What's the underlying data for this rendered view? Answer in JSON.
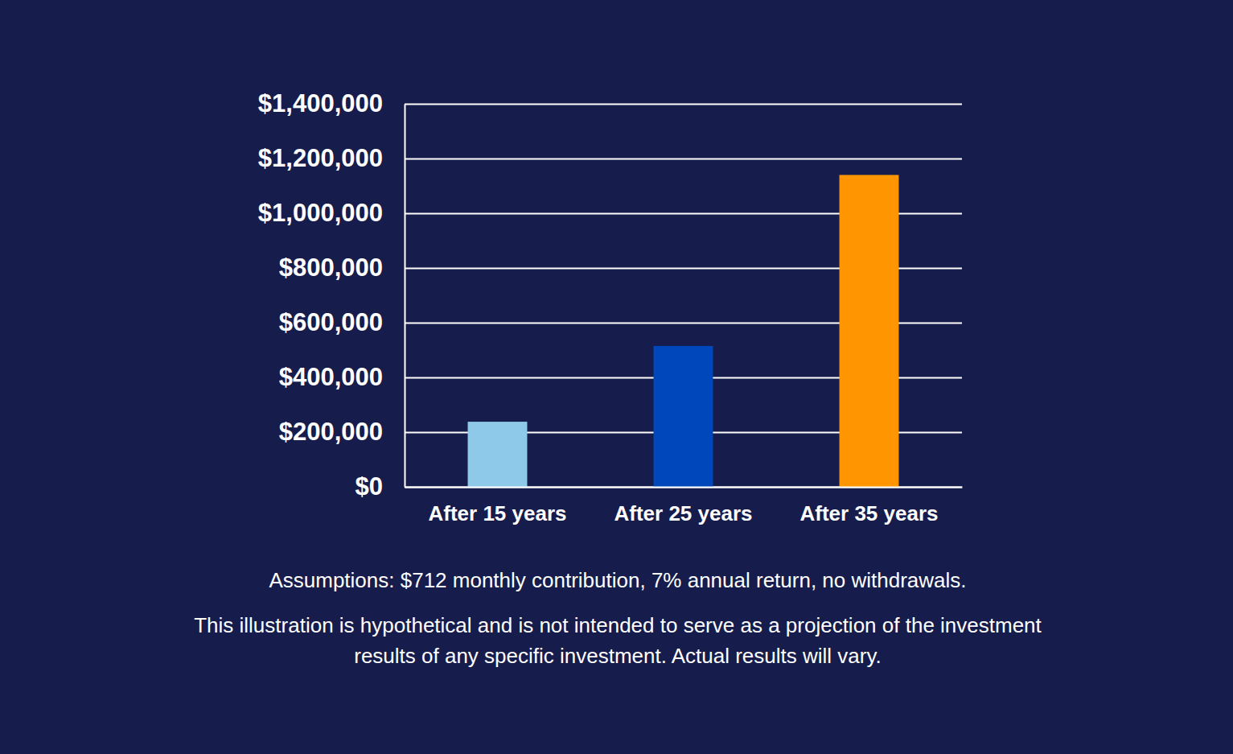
{
  "chart_data": {
    "type": "bar",
    "categories": [
      "After 15 years",
      "After 25 years",
      "After 35 years"
    ],
    "values": [
      238000,
      515000,
      1140000
    ],
    "colors": [
      "#8fc9ea",
      "#0047bb",
      "#ff9500"
    ],
    "ylim": [
      0,
      1400000
    ],
    "yticks": [
      {
        "value": 0,
        "label": "$0"
      },
      {
        "value": 200000,
        "label": "$200,000"
      },
      {
        "value": 400000,
        "label": "$400,000"
      },
      {
        "value": 600000,
        "label": "$600,000"
      },
      {
        "value": 800000,
        "label": "$800,000"
      },
      {
        "value": 1000000,
        "label": "$1,000,000"
      },
      {
        "value": 1200000,
        "label": "$1,200,000"
      },
      {
        "value": 1400000,
        "label": "$1,400,000"
      }
    ],
    "grid": true,
    "annotations": [
      "Assumptions: $712 monthly contribution, 7% annual return, no withdrawals.",
      "This illustration is hypothetical and is not intended to serve as a projection of the investment",
      "results of any specific investment. Actual results will vary."
    ]
  }
}
